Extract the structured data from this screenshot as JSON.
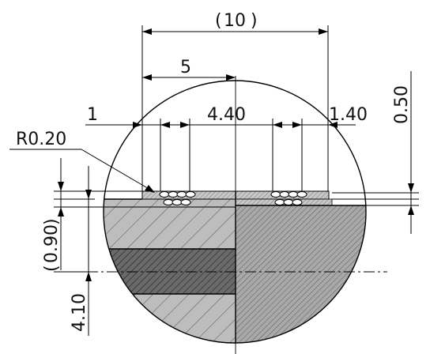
{
  "drawing": {
    "dimensions": {
      "overall_width": "10",
      "half_width": "5",
      "left_offset": "1",
      "mid_span": "4.40",
      "right_offset": "1.40",
      "corner_radius": "R0.20",
      "top_thickness": "0.50",
      "ref_thickness": "0.90",
      "depth": "4.10"
    },
    "colors": {
      "line": "#000000",
      "hatch_light": "#b9b9b9",
      "hatch_dark": "#8a8a8a",
      "hatch_band": "#5a5a5a",
      "background": "#ffffff"
    }
  }
}
